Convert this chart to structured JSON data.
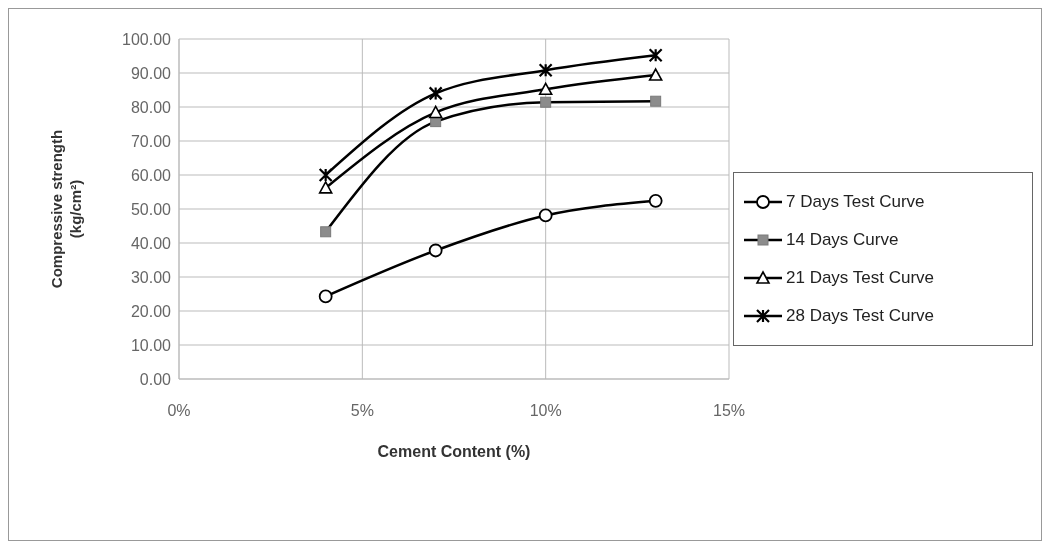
{
  "chart_data": {
    "type": "line",
    "xlabel": "Cement Content (%)",
    "ylabel": "Compressive strength (kg/cm²)",
    "x": [
      4,
      7,
      10,
      13
    ],
    "series": [
      {
        "name": "7 Days Test Curve",
        "color": "#000000",
        "marker": "circle",
        "values": [
          24.3,
          37.8,
          48.1,
          52.4
        ]
      },
      {
        "name": "14 Days Curve",
        "color": "#000000",
        "marker": "square",
        "values": [
          43.3,
          75.7,
          81.4,
          81.7
        ]
      },
      {
        "name": "21 Days Test Curve",
        "color": "#000000",
        "marker": "triangle",
        "values": [
          56.2,
          78.4,
          85.2,
          89.4
        ]
      },
      {
        "name": "28 Days Test Curve",
        "color": "#000000",
        "marker": "cross",
        "values": [
          60,
          84,
          90.8,
          95.2
        ]
      }
    ],
    "xlim": [
      0,
      15
    ],
    "xticks": [
      {
        "value": 0,
        "label": "0%"
      },
      {
        "value": 5,
        "label": "5%"
      },
      {
        "value": 10,
        "label": "10%"
      },
      {
        "value": 15,
        "label": "15%"
      }
    ],
    "ylim": [
      0,
      100
    ],
    "yticks": [
      {
        "value": 0,
        "label": "0.00"
      },
      {
        "value": 10,
        "label": "10.00"
      },
      {
        "value": 20,
        "label": "20.00"
      },
      {
        "value": 30,
        "label": "30.00"
      },
      {
        "value": 40,
        "label": "40.00"
      },
      {
        "value": 50,
        "label": "50.00"
      },
      {
        "value": 60,
        "label": "60.00"
      },
      {
        "value": 70,
        "label": "70.00"
      },
      {
        "value": 80,
        "label": "80.00"
      },
      {
        "value": 90,
        "label": "90.00"
      },
      {
        "value": 100,
        "label": "100.00"
      }
    ],
    "grid": true,
    "legend": "right"
  }
}
